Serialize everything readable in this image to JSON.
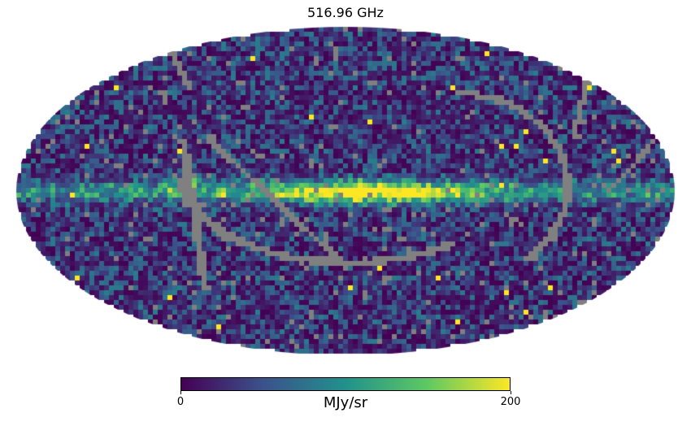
{
  "title": "516.96 GHz",
  "projection": "mollweide",
  "colormap": "viridis",
  "masked_pixel_color": "#808080",
  "colorbar": {
    "min_label": "0",
    "max_label": "200",
    "unit": "MJy/sr",
    "range": [
      0,
      200
    ],
    "colors": [
      "#440154",
      "#3b528b",
      "#21918c",
      "#5ec962",
      "#fde725"
    ]
  }
}
